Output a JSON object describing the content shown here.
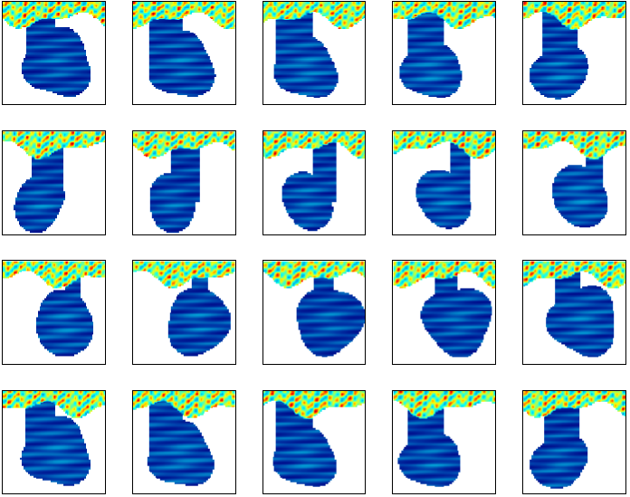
{
  "chart_data": {
    "type": "image_grid",
    "rows": 4,
    "columns": 5,
    "tick_labels": false
  }
}
